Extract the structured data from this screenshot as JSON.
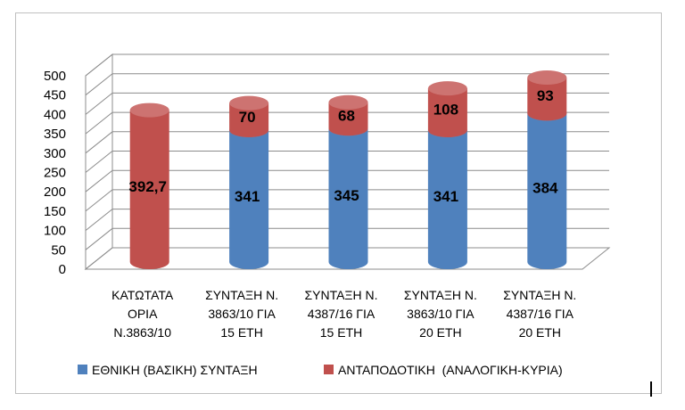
{
  "chart_data": {
    "type": "bar",
    "stacked": true,
    "style": "3d-cylinder",
    "categories": [
      [
        "ΚΑΤΩΤΑΤΑ",
        "ΟΡΙΑ",
        "Ν.3863/10"
      ],
      [
        "ΣΥΝΤΑΞΗ  Ν.",
        "3863/10 ΓΙΑ",
        "15 ΕΤΗ"
      ],
      [
        "ΣΥΝΤΑΞΗ  Ν.",
        "4387/16 ΓΙΑ",
        "15 ΕΤΗ"
      ],
      [
        "ΣΥΝΤΑΞΗ  Ν.",
        "3863/10 ΓΙΑ",
        "20 ΕΤΗ"
      ],
      [
        "ΣΥΝΤΑΞΗ  Ν.",
        "4387/16 ΓΙΑ",
        "20 ΕΤΗ"
      ]
    ],
    "series": [
      {
        "name": "ΕΘΝΙΚΗ  (ΒΑΣΙΚΗ) ΣΥΝΤΑΞΗ",
        "color": "#4f81bd",
        "values": [
          0,
          341,
          345,
          341,
          384
        ],
        "labels": [
          "",
          "341",
          "345",
          "341",
          "384"
        ]
      },
      {
        "name": "ΑΝΤΑΠΟΔΟΤΙΚΗ  (ΑΝΑΛΟΓΙΚΗ-ΚΥΡΙΑ)",
        "color": "#c0504d",
        "values": [
          392.7,
          70,
          68,
          108,
          93
        ],
        "labels": [
          "392,7",
          "70",
          "68",
          "108",
          "93"
        ]
      }
    ],
    "ylim": [
      0,
      500
    ],
    "yticks": [
      0,
      50,
      100,
      150,
      200,
      250,
      300,
      350,
      400,
      450,
      500
    ],
    "grid": true,
    "legend_position": "bottom"
  }
}
